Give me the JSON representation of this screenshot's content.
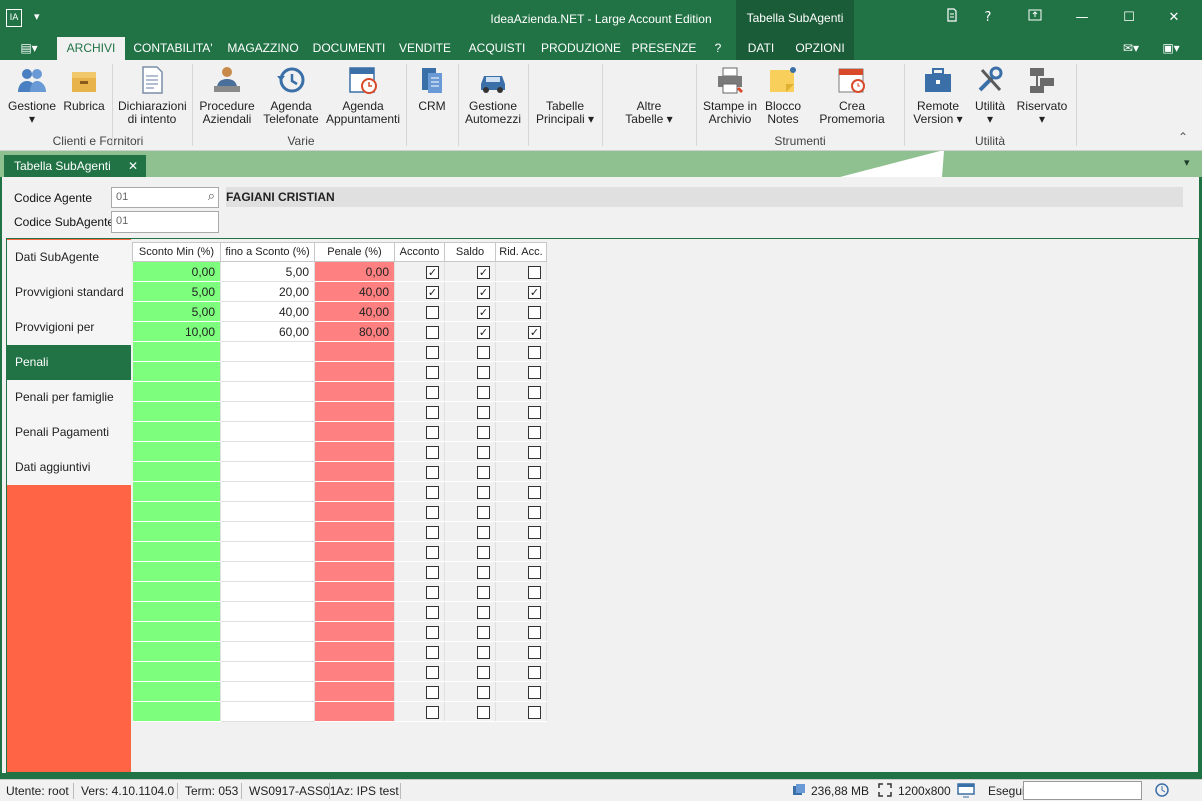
{
  "window": {
    "app_icon": "IA",
    "quick_access": "▾",
    "title": "IdeaAzienda.NET - Large Account Edition",
    "context_tab_title": "Tabella SubAgenti",
    "controls": [
      "help-icon",
      "restore-icon",
      "minimize-icon",
      "maximize-icon",
      "close-icon"
    ]
  },
  "menu": {
    "file_icon": "▤▾",
    "items": [
      "ARCHIVI",
      "CONTABILITA'",
      "MAGAZZINO",
      "DOCUMENTI",
      "VENDITE",
      "ACQUISTI",
      "PRODUZIONE",
      "PRESENZE",
      "?",
      "DATI",
      "OPZIONI"
    ],
    "active": "ARCHIVI"
  },
  "ribbon": {
    "groups": [
      {
        "label": "Clienti e Fornitori",
        "buttons": [
          {
            "label1": "Gestione",
            "label2": "▾",
            "icon": "users-icon"
          },
          {
            "label1": "Rubrica",
            "label2": "",
            "icon": "box-icon"
          },
          {
            "label1": "Dichiarazioni",
            "label2": "di intento",
            "icon": "document-icon"
          }
        ]
      },
      {
        "label": "Varie",
        "buttons": [
          {
            "label1": "Procedure",
            "label2": "Aziendali",
            "icon": "worker-icon"
          },
          {
            "label1": "Agenda",
            "label2": "Telefonate",
            "icon": "history-icon"
          },
          {
            "label1": "Agenda",
            "label2": "Appuntamenti",
            "icon": "calendar-clock-icon"
          }
        ]
      },
      {
        "label": "",
        "buttons": [
          {
            "label1": "CRM",
            "label2": "",
            "icon": "crm-icon"
          },
          {
            "label1": "Gestione",
            "label2": "Automezzi",
            "icon": "car-icon"
          },
          {
            "label1": "Tabelle",
            "label2": "Principali ▾",
            "icon": ""
          },
          {
            "label1": "Altre",
            "label2": "Tabelle ▾",
            "icon": ""
          }
        ]
      },
      {
        "label": "Strumenti",
        "buttons": [
          {
            "label1": "Stampe in",
            "label2": "Archivio",
            "icon": "printer-icon"
          },
          {
            "label1": "Blocco",
            "label2": "Notes",
            "icon": "sticky-note-icon"
          },
          {
            "label1": "Crea Promemoria",
            "label2": "",
            "icon": "reminder-icon"
          }
        ]
      },
      {
        "label": "Utilità",
        "buttons": [
          {
            "label1": "Remote",
            "label2": "Version ▾",
            "icon": "briefcase-icon"
          },
          {
            "label1": "Utilità",
            "label2": "▾",
            "icon": "tools-icon"
          },
          {
            "label1": "Riservato",
            "label2": "▾",
            "icon": "network-icon"
          }
        ]
      }
    ],
    "collapse_glyph": "⌃"
  },
  "doc_tab": {
    "label": "Tabella SubAgenti",
    "close": "✕",
    "dropdown": "▾"
  },
  "header": {
    "codice_agente_label": "Codice Agente",
    "codice_agente_value": "01",
    "codice_subagente_label": "Codice SubAgente",
    "codice_subagente_value": "01",
    "agent_name": "FAGIANI CRISTIAN",
    "search_glyph": "⌕"
  },
  "nav": {
    "items": [
      "Dati SubAgente",
      "Provvigioni standard",
      "Provvigioni per famiglie",
      "Penali",
      "Penali per famiglie",
      "Penali Pagamenti",
      "Dati aggiuntivi"
    ],
    "active": "Penali"
  },
  "grid": {
    "columns": [
      "Sconto Min (%)",
      "fino a Sconto (%)",
      "Penale (%)",
      "Acconto",
      "Saldo",
      "Rid. Acc."
    ],
    "rows": [
      {
        "sconto_min": "0,00",
        "fino_a": "5,00",
        "penale": "0,00",
        "acconto": true,
        "saldo": true,
        "rid_acc": false
      },
      {
        "sconto_min": "5,00",
        "fino_a": "20,00",
        "penale": "40,00",
        "acconto": true,
        "saldo": true,
        "rid_acc": true
      },
      {
        "sconto_min": "5,00",
        "fino_a": "40,00",
        "penale": "40,00",
        "acconto": false,
        "saldo": true,
        "rid_acc": false
      },
      {
        "sconto_min": "10,00",
        "fino_a": "60,00",
        "penale": "80,00",
        "acconto": false,
        "saldo": true,
        "rid_acc": true
      }
    ],
    "empty_rows": 19,
    "colors": {
      "green": "#7dff7d",
      "red": "#ff8080"
    }
  },
  "status": {
    "utente": "Utente: root",
    "versione": "Vers: 4.10.1104.0",
    "term": "Term: 053",
    "workstation": "WS0917-ASS01",
    "azienda": "Az: IPS test",
    "memory": "236,88 MB",
    "resolution": "1200x800",
    "esegui": "Esegui"
  },
  "theme": {
    "accent": "#217346",
    "nav_bg": "#ff6545"
  }
}
